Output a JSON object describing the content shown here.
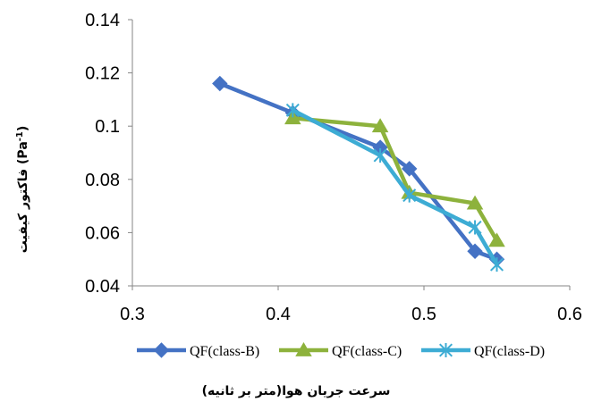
{
  "chart_data": {
    "type": "line",
    "xlabel": "سرعت جریان هوا(متر بر ثانیه)",
    "ylabel_main": "فاکتور کیفیت (",
    "ylabel_unit": "Pa",
    "ylabel_exp": "-1",
    "ylabel_close": ")",
    "xlim": [
      0.3,
      0.6
    ],
    "ylim": [
      0.04,
      0.14
    ],
    "xticks": [
      0.3,
      0.4,
      0.5,
      0.6
    ],
    "xtick_labels": [
      "0.3",
      "0.4",
      "0.5",
      "0.6"
    ],
    "yticks": [
      0.04,
      0.06,
      0.08,
      0.1,
      0.12,
      0.14
    ],
    "ytick_labels": [
      "0.04",
      "0.06",
      "0.08",
      "0.1",
      "0.12",
      "0.14"
    ],
    "grid": false,
    "legend_position": "bottom",
    "series": [
      {
        "name": "QF(class-B)",
        "color": "#4472C4",
        "marker": "diamond",
        "x": [
          0.36,
          0.41,
          0.47,
          0.49,
          0.535,
          0.55
        ],
        "y": [
          0.116,
          0.105,
          0.092,
          0.084,
          0.053,
          0.05
        ]
      },
      {
        "name": "QF(class-C)",
        "color": "#8DB23C",
        "marker": "triangle",
        "x": [
          0.41,
          0.47,
          0.49,
          0.535,
          0.55
        ],
        "y": [
          0.103,
          0.1,
          0.075,
          0.071,
          0.057
        ]
      },
      {
        "name": "QF(class-D)",
        "color": "#3DACD4",
        "marker": "star",
        "x": [
          0.41,
          0.47,
          0.49,
          0.535,
          0.55
        ],
        "y": [
          0.106,
          0.089,
          0.074,
          0.062,
          0.048
        ]
      }
    ]
  }
}
